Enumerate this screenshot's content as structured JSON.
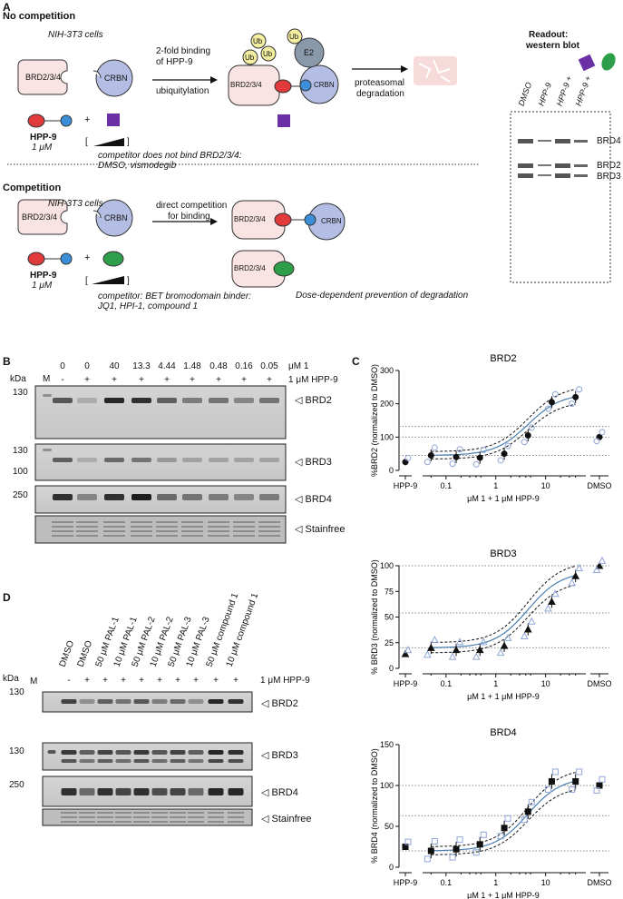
{
  "panelA": {
    "letter": "A",
    "no_comp_title": "No competition",
    "cells1": "NIH-3T3 cells",
    "brd_label": "BRD2/3/4",
    "crbn_label": "CRBN",
    "arrow1_top1": "2-fold binding",
    "arrow1_top2": "of HPP-9",
    "arrow1_bottom": "ubiquitylation",
    "ub": "Ub",
    "e2": "E2",
    "degr1": "proteasomal",
    "degr2": "degradation",
    "hpp9": "HPP-9",
    "conc": "1 μM",
    "plus": "+",
    "competitor_no1": "competitor does not bind BRD2/3/4:",
    "competitor_no2": "DMSO, vismodegib",
    "comp_title": "Competition",
    "cells2": "NIH-3T3 cells",
    "arrow2_top1": "direct competition",
    "arrow2_top2": "for binding",
    "prevention": "Dose-dependent prevention of degradation",
    "competitor_yes1": "competitor: BET bromodomain binder:",
    "competitor_yes2": "JQ1, HPI-1, compound 1",
    "readout1": "Readout:",
    "readout2": "western blot",
    "wb_lanes": [
      "DMSO",
      "HPP-9",
      "HPP-9 +",
      "HPP-9 +"
    ],
    "wb_bands": [
      "BRD4",
      "BRD2",
      "BRD3"
    ]
  },
  "panelB": {
    "letter": "B",
    "kda": "kDa",
    "marker": "M",
    "conc_values": [
      "0",
      "0",
      "40",
      "13.3",
      "4.44",
      "1.48",
      "0.48",
      "0.16",
      "0.05"
    ],
    "conc_unit": "μM 1",
    "hpp_row": [
      "-",
      "+",
      "+",
      "+",
      "+",
      "+",
      "+",
      "+",
      "+"
    ],
    "hpp_label": "1 μM HPP-9",
    "markers": [
      "130",
      "130",
      "100",
      "250"
    ],
    "bands": [
      "BRD2",
      "BRD3",
      "BRD4",
      "Stainfree"
    ]
  },
  "panelD": {
    "letter": "D",
    "kda": "kDa",
    "marker": "M",
    "lanes": [
      "DMSO",
      "DMSO",
      "50 μM PAL-1",
      "10 μM PAL-1",
      "50 μM PAL-2",
      "10 μM PAL-2",
      "50 μM PAL-3",
      "10 μM PAL-3",
      "50 μM compound 1",
      "10 μM compound 1"
    ],
    "hpp_row": [
      "-",
      "+",
      "+",
      "+",
      "+",
      "+",
      "+",
      "+",
      "+",
      "+"
    ],
    "hpp_label": "1 μM HPP-9",
    "markers": [
      "130",
      "130",
      "250"
    ],
    "bands": [
      "BRD2",
      "BRD3",
      "BRD4",
      "Stainfree"
    ]
  },
  "panelC": {
    "letter": "C",
    "x_ticks": [
      "HPP-9",
      "0.1",
      "1",
      "10",
      "DMSO"
    ]
  },
  "chart_data": [
    {
      "type": "scatter",
      "title": "BRD2",
      "ylabel": "%BRD2 (normalized to DMSO)",
      "xlabel": "μM 1 + 1 μM HPP-9",
      "x_scale": "log",
      "ylim": [
        0,
        300
      ],
      "yticks": [
        0,
        100,
        200,
        300
      ],
      "x": [
        0.05,
        0.16,
        0.48,
        1.48,
        4.44,
        13.3,
        40
      ],
      "means": [
        45,
        40,
        38,
        50,
        105,
        205,
        220
      ],
      "hpp9_only": 25,
      "dmso": 100,
      "marker": "circle"
    },
    {
      "type": "scatter",
      "title": "BRD3",
      "ylabel": "% BRD3 (normalized to DMSO)",
      "xlabel": "μM 1 + 1 μM HPP-9",
      "x_scale": "log",
      "ylim": [
        0,
        100
      ],
      "yticks": [
        0,
        25,
        50,
        75,
        100
      ],
      "x": [
        0.05,
        0.16,
        0.48,
        1.48,
        4.44,
        13.3,
        40
      ],
      "means": [
        20,
        18,
        18,
        22,
        38,
        65,
        90
      ],
      "hpp9_only": 14,
      "dmso": 100,
      "marker": "triangle"
    },
    {
      "type": "scatter",
      "title": "BRD4",
      "ylabel": "% BRD4 (normalized to DMSO)",
      "xlabel": "μM 1 + 1 μM HPP-9",
      "x_scale": "log",
      "ylim": [
        0,
        150
      ],
      "yticks": [
        0,
        50,
        100,
        150
      ],
      "x": [
        0.05,
        0.16,
        0.48,
        1.48,
        4.44,
        13.3,
        40
      ],
      "means": [
        20,
        22,
        28,
        48,
        68,
        105,
        105
      ],
      "hpp9_only": 25,
      "dmso": 100,
      "marker": "square"
    }
  ]
}
